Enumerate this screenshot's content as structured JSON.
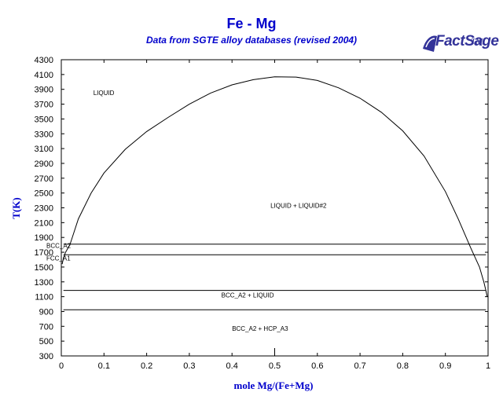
{
  "colors": {
    "title": "#0000cc",
    "logo": "#333399",
    "line": "#000000"
  },
  "header": {
    "title": "Fe - Mg",
    "subtitle": "Data from SGTE alloy databases (revised 2004)",
    "logo_text": "FactSage",
    "logo_sup": "TM"
  },
  "chart_data": {
    "type": "line",
    "title": "Fe - Mg",
    "subtitle": "Data from SGTE alloy databases (revised 2004)",
    "xlabel": "mole Mg/(Fe+Mg)",
    "ylabel": "T(K)",
    "xlim": [
      0,
      1
    ],
    "ylim": [
      300,
      4300
    ],
    "xticks": [
      "0",
      "0.1",
      "0.2",
      "0.3",
      "0.4",
      "0.5",
      "0.6",
      "0.7",
      "0.8",
      "0.9",
      "1"
    ],
    "yticks": [
      "300",
      "500",
      "700",
      "900",
      "1100",
      "1300",
      "1500",
      "1700",
      "1900",
      "2100",
      "2300",
      "2500",
      "2700",
      "2900",
      "3100",
      "3300",
      "3500",
      "3700",
      "3900",
      "4100",
      "4300"
    ],
    "grid": false,
    "series": [
      {
        "name": "",
        "x": [
          0.002,
          0.005,
          0.01,
          0.02,
          0.04,
          0.07,
          0.1,
          0.15,
          0.2,
          0.25,
          0.3,
          0.35,
          0.4,
          0.45,
          0.5,
          0.55,
          0.6,
          0.65,
          0.7,
          0.75,
          0.8,
          0.85,
          0.9,
          0.93,
          0.96,
          0.98,
          0.99,
          0.995,
          0.998
        ],
        "y": [
          1540,
          1620,
          1700,
          1800,
          2150,
          2500,
          2770,
          3090,
          3330,
          3520,
          3700,
          3850,
          3960,
          4030,
          4070,
          4065,
          4020,
          3920,
          3780,
          3590,
          3340,
          3000,
          2520,
          2150,
          1750,
          1500,
          1300,
          1180,
          1100
        ]
      },
      {
        "name": "",
        "x": [
          0.005,
          0.995
        ],
        "y": [
          1810,
          1810
        ]
      },
      {
        "name": "",
        "x": [
          0.005,
          0.995
        ],
        "y": [
          1667,
          1667
        ]
      },
      {
        "name": "",
        "x": [
          0.005,
          0.995
        ],
        "y": [
          1185,
          1185
        ]
      },
      {
        "name": "",
        "x": [
          0.005,
          0.995
        ],
        "y": [
          923,
          923
        ]
      }
    ],
    "annotations": [
      {
        "text": "LIQUID",
        "x": 0.075,
        "y": 3820
      },
      {
        "text": "LIQUID + LIQUID#2",
        "x": 0.49,
        "y": 2300
      },
      {
        "text": "BCC_A2",
        "x": -0.035,
        "y": 1760
      },
      {
        "text": "FCC_A1",
        "x": -0.035,
        "y": 1590
      },
      {
        "text": "BCC_A2 + LIQUID",
        "x": 0.375,
        "y": 1090
      },
      {
        "text": "BCC_A2 + HCP_A3",
        "x": 0.4,
        "y": 640
      }
    ]
  }
}
